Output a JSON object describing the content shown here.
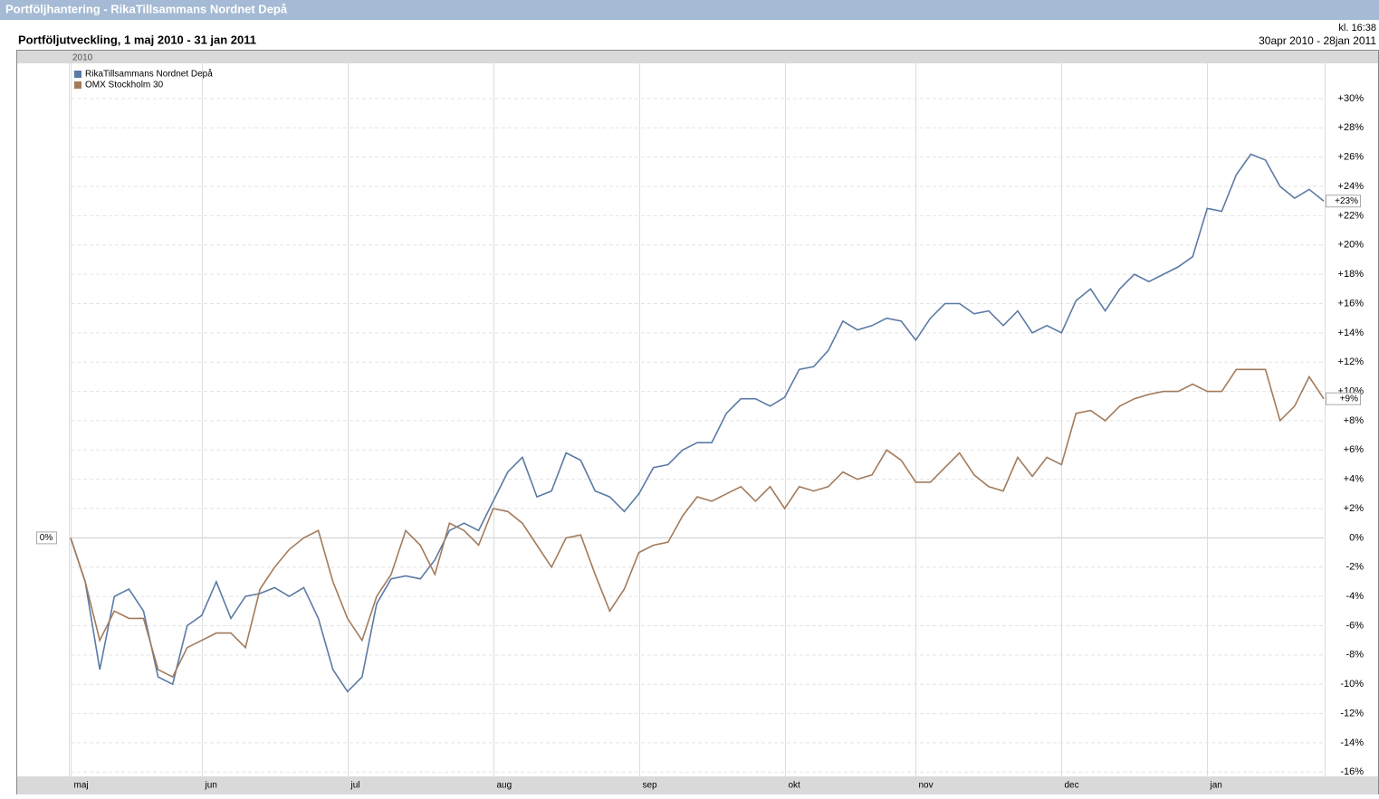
{
  "header": {
    "title": "Portföljhantering - RikaTillsammans Nordnet Depå"
  },
  "chart_data": {
    "type": "line",
    "title": "Portföljutveckling, 1 maj 2010 - 31 jan 2011",
    "time_label": "kl. 16:38",
    "period_label": "30apr 2010 - 28jan 2011",
    "year_label": "2010",
    "baseline_label": "0%",
    "legend": "upper left",
    "grid": true,
    "categories": [
      "maj",
      null,
      null,
      null,
      null,
      null,
      null,
      null,
      null,
      "jun",
      null,
      null,
      null,
      null,
      null,
      null,
      null,
      null,
      null,
      "jul",
      null,
      null,
      null,
      null,
      null,
      null,
      null,
      null,
      null,
      "aug",
      null,
      null,
      null,
      null,
      null,
      null,
      null,
      null,
      null,
      "sep",
      null,
      null,
      null,
      null,
      null,
      null,
      null,
      null,
      null,
      "okt",
      null,
      null,
      null,
      null,
      null,
      null,
      null,
      null,
      "nov",
      null,
      null,
      null,
      null,
      null,
      null,
      null,
      null,
      null,
      "dec",
      null,
      null,
      null,
      null,
      null,
      null,
      null,
      null,
      null,
      "jan",
      null,
      null,
      null,
      null,
      null,
      null,
      null,
      null
    ],
    "series": [
      {
        "name": "RikaTillsammans Nordnet Depå",
        "color": "#5b7aa5",
        "end_label": "+23%",
        "values": [
          0,
          -3,
          -9,
          -4,
          -3.5,
          -5,
          -9.5,
          -10,
          -6,
          -5.3,
          -3,
          -5.5,
          -4,
          -3.8,
          -3.4,
          -4,
          -3.4,
          -5.5,
          -9,
          -10.5,
          -9.5,
          -4.5,
          -2.8,
          -2.6,
          -2.8,
          -1.5,
          0.5,
          1,
          0.5,
          2.5,
          4.5,
          5.5,
          2.8,
          3.2,
          5.8,
          5.3,
          3.2,
          2.8,
          1.8,
          3,
          4.8,
          5,
          6,
          6.5,
          6.5,
          8.5,
          9.5,
          9.5,
          9,
          9.6,
          11.5,
          11.7,
          12.8,
          14.8,
          14.2,
          14.5,
          15,
          14.8,
          13.5,
          15,
          16,
          16,
          15.3,
          15.5,
          14.5,
          15.5,
          14,
          14.5,
          14,
          16.2,
          17,
          15.5,
          17,
          18,
          17.5,
          18,
          18.5,
          19.2,
          22.5,
          22.3,
          24.8,
          26.2,
          25.8,
          24,
          23.2,
          23.8,
          23
        ]
      },
      {
        "name": "OMX Stockholm 30",
        "color": "#a27b5c",
        "end_label": "+9%",
        "values": [
          0,
          -3,
          -7,
          -5,
          -5.5,
          -5.5,
          -9,
          -9.5,
          -7.5,
          -7,
          -6.5,
          -6.5,
          -7.5,
          -3.5,
          -2,
          -0.8,
          0,
          0.5,
          -3,
          -5.5,
          -7,
          -4,
          -2.5,
          0.5,
          -0.5,
          -2.5,
          1,
          0.5,
          -0.5,
          2,
          1.8,
          1,
          -0.5,
          -2,
          0,
          0.2,
          -2.5,
          -5,
          -3.5,
          -1,
          -0.5,
          -0.3,
          1.5,
          2.8,
          2.5,
          3,
          3.5,
          2.5,
          3.5,
          2,
          3.5,
          3.2,
          3.5,
          4.5,
          4,
          4.3,
          6,
          5.3,
          3.8,
          3.8,
          4.8,
          5.8,
          4.3,
          3.5,
          3.2,
          5.5,
          4.2,
          5.5,
          5,
          8.5,
          8.7,
          8,
          9,
          9.5,
          9.8,
          10,
          10,
          10.5,
          10,
          10,
          11.5,
          11.5,
          11.5,
          8,
          9,
          11,
          9.5
        ]
      }
    ],
    "ylim": [
      -16.6,
      30.8
    ],
    "yticks": [
      {
        "value": -16,
        "label": "-16%"
      },
      {
        "value": -14,
        "label": "-14%"
      },
      {
        "value": -12,
        "label": "-12%"
      },
      {
        "value": -10,
        "label": "-10%"
      },
      {
        "value": -8,
        "label": "-8%"
      },
      {
        "value": -6,
        "label": "-6%"
      },
      {
        "value": -4,
        "label": "-4%"
      },
      {
        "value": -2,
        "label": "-2%"
      },
      {
        "value": 0,
        "label": "0%"
      },
      {
        "value": 2,
        "label": "+2%"
      },
      {
        "value": 4,
        "label": "+4%"
      },
      {
        "value": 6,
        "label": "+6%"
      },
      {
        "value": 8,
        "label": "+8%"
      },
      {
        "value": 10,
        "label": "+10%"
      },
      {
        "value": 12,
        "label": "+12%"
      },
      {
        "value": 14,
        "label": "+14%"
      },
      {
        "value": 16,
        "label": "+16%"
      },
      {
        "value": 18,
        "label": "+18%"
      },
      {
        "value": 20,
        "label": "+20%"
      },
      {
        "value": 22,
        "label": "+22%"
      },
      {
        "value": 24,
        "label": "+24%"
      },
      {
        "value": 26,
        "label": "+26%"
      },
      {
        "value": 28,
        "label": "+28%"
      },
      {
        "value": 30,
        "label": "+30%"
      }
    ]
  }
}
